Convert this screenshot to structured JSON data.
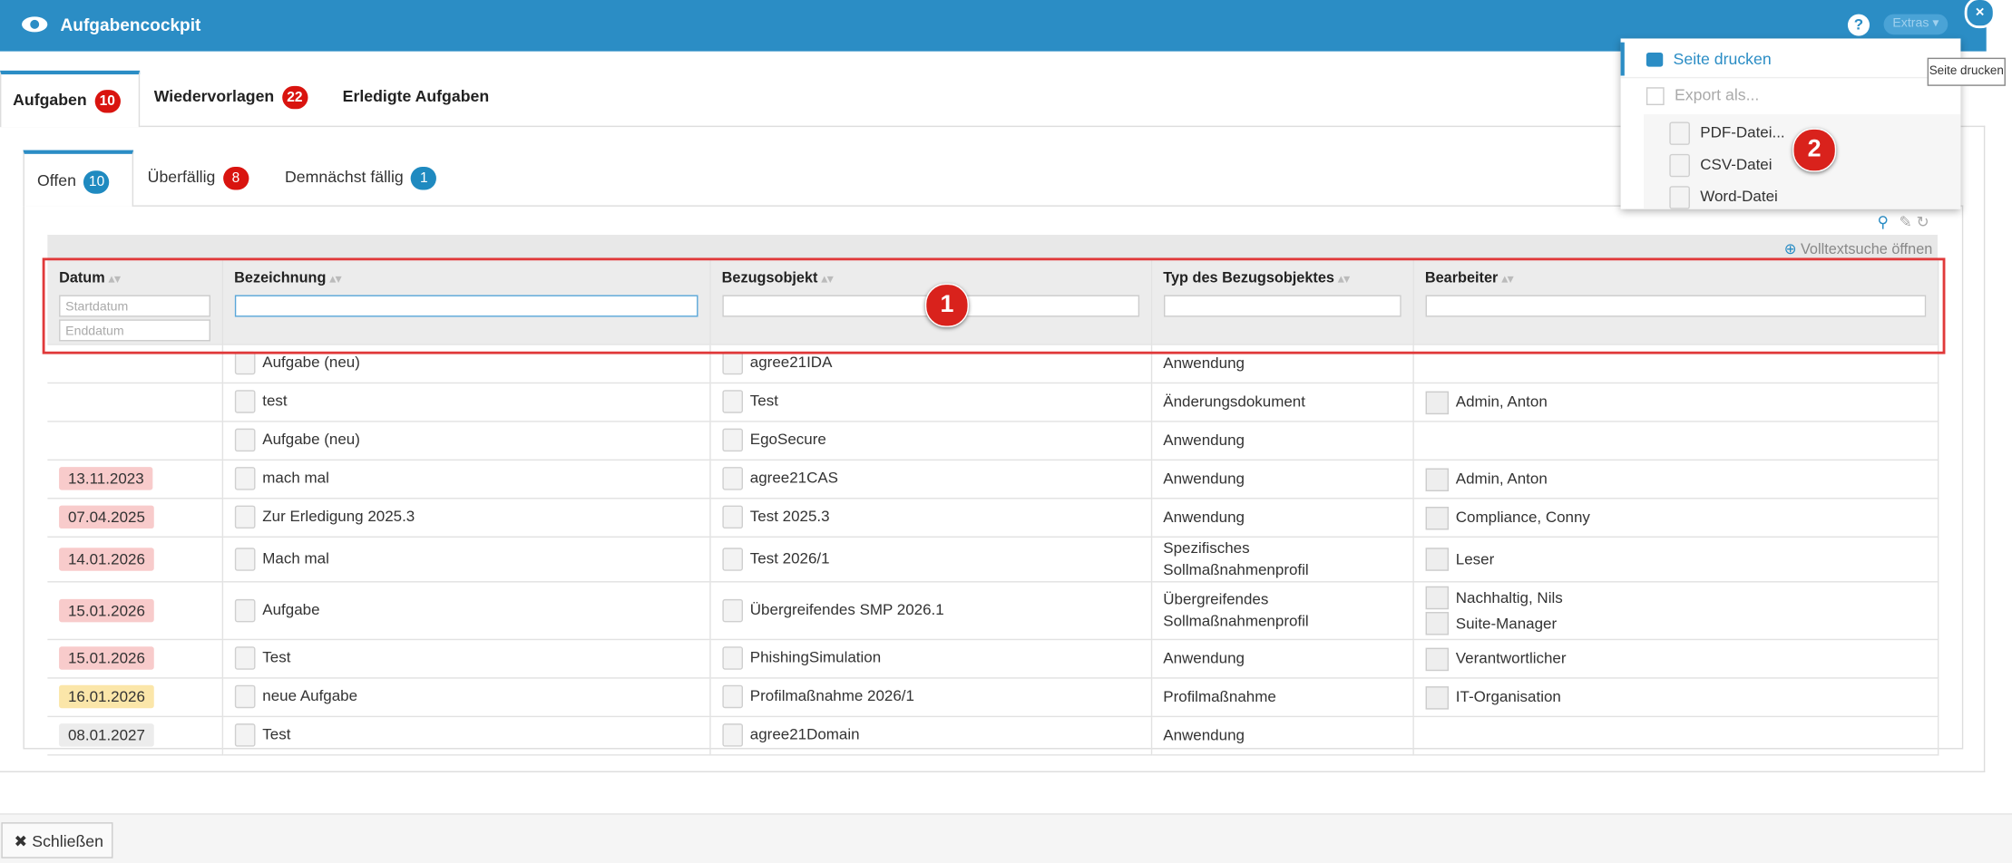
{
  "header": {
    "title": "Aufgabencockpit",
    "extras": "Extras"
  },
  "tabs": [
    {
      "label": "Aufgaben",
      "count": 10
    },
    {
      "label": "Wiedervorlagen",
      "count": 22
    },
    {
      "label": "Erledigte Aufgaben"
    }
  ],
  "subtabs": [
    {
      "label": "Offen",
      "count": 10,
      "color": "#1f8ac0"
    },
    {
      "label": "Überfällig",
      "count": 8,
      "color": "#d9140f"
    },
    {
      "label": "Demnächst fällig",
      "count": 1,
      "color": "#1f8ac0"
    }
  ],
  "toolbar": {
    "fulltext": "Volltextsuche öffnen"
  },
  "table": {
    "columns": [
      "Datum",
      "Bezeichnung",
      "Bezugsobjekt",
      "Typ des Bezugsobjektes",
      "Bearbeiter"
    ],
    "filters": [
      "Startdatum",
      "Enddatum"
    ],
    "rows": [
      {
        "date": null,
        "date_color": null,
        "name": "Aufgabe (neu)",
        "object": "agree21IDA",
        "type": "Anwendung",
        "users": []
      },
      {
        "date": null,
        "date_color": null,
        "name": "test",
        "object": "Test",
        "type": "Änderungsdokument",
        "users": [
          "Admin, Anton"
        ]
      },
      {
        "date": null,
        "date_color": null,
        "name": "Aufgabe (neu)",
        "object": "EgoSecure",
        "type": "Anwendung",
        "users": []
      },
      {
        "date": "13.11.2023",
        "date_color": "#f8cbcb",
        "name": "mach mal",
        "object": "agree21CAS",
        "type": "Anwendung",
        "users": [
          "Admin, Anton"
        ]
      },
      {
        "date": "07.04.2025",
        "date_color": "#f8cbcb",
        "name": "Zur Erledigung 2025.3",
        "object": "Test 2025.3",
        "type": "Anwendung",
        "users": [
          "Compliance, Conny"
        ]
      },
      {
        "date": "14.01.2026",
        "date_color": "#f8cbcb",
        "name": "Mach mal",
        "object": "Test 2026/1",
        "type": "Spezifisches Sollmaßnahmenprofil",
        "users": [
          "Leser"
        ]
      },
      {
        "date": "15.01.2026",
        "date_color": "#f8cbcb",
        "name": "Aufgabe",
        "object": "Übergreifendes SMP 2026.1",
        "type": "Übergreifendes Sollmaßnahmenprofil",
        "users": [
          "Nachhaltig, Nils",
          "Suite-Manager"
        ]
      },
      {
        "date": "15.01.2026",
        "date_color": "#f8cbcb",
        "name": "Test",
        "object": "PhishingSimulation",
        "type": "Anwendung",
        "users": [
          "Verantwortlicher"
        ]
      },
      {
        "date": "16.01.2026",
        "date_color": "#fbe6a9",
        "name": "neue Aufgabe",
        "object": "Profilmaßnahme 2026/1",
        "type": "Profilmaßnahme",
        "users": [
          "IT-Organisation"
        ]
      },
      {
        "date": "08.01.2027",
        "date_color": "#ececec",
        "name": "Test",
        "object": "agree21Domain",
        "type": "Anwendung",
        "users": []
      }
    ]
  },
  "menu": {
    "print": "Seite drucken",
    "export": "Export als...",
    "items": [
      "PDF-Datei...",
      "CSV-Datei",
      "Word-Datei"
    ]
  },
  "tooltip": "Seite drucken",
  "annotations": [
    "1",
    "2"
  ],
  "footer": {
    "close": "Schließen"
  }
}
